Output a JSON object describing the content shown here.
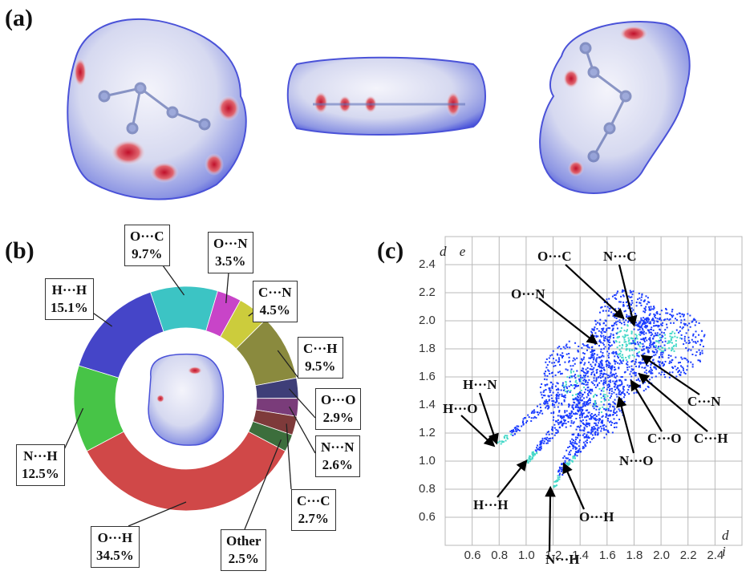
{
  "labels": {
    "a": "(a)",
    "b": "(b)",
    "c": "(c)"
  },
  "colors": {
    "surface_base": "#dfe3f5",
    "surface_blue": "#3b45d8",
    "contact_red": "#c0102a",
    "fingerprint_blue": "#1a3cff",
    "fingerprint_cyan": "#44d8c8"
  },
  "chart_data": [
    {
      "type": "pie",
      "variant": "donut",
      "slices": [
        {
          "label": "O···H",
          "value": 34.5,
          "color": "#d04848",
          "callout": [
            "O···H",
            "34.5%"
          ]
        },
        {
          "label": "N···H",
          "value": 12.5,
          "color": "#47c447",
          "callout": [
            "N···H",
            "12.5%"
          ]
        },
        {
          "label": "H···H",
          "value": 15.1,
          "color": "#4545c8",
          "callout": [
            "H···H",
            "15.1%"
          ]
        },
        {
          "label": "O···C",
          "value": 9.7,
          "color": "#3cc4c4",
          "callout": [
            "O···C",
            "9.7%"
          ]
        },
        {
          "label": "O···N",
          "value": 3.5,
          "color": "#c844c8",
          "callout": [
            "O···N",
            "3.5%"
          ]
        },
        {
          "label": "C···N",
          "value": 4.5,
          "color": "#cccc3c",
          "callout": [
            "C···N",
            "4.5%"
          ]
        },
        {
          "label": "C···H",
          "value": 9.5,
          "color": "#8a8a3e",
          "callout": [
            "C···H",
            "9.5%"
          ]
        },
        {
          "label": "O···O",
          "value": 2.9,
          "color": "#3e3e78",
          "callout": [
            "O···O",
            "2.9%"
          ]
        },
        {
          "label": "N···N",
          "value": 2.6,
          "color": "#7a3c7a",
          "callout": [
            "N···N",
            "2.6%"
          ]
        },
        {
          "label": "C···C",
          "value": 2.7,
          "color": "#7e3a3a",
          "callout": [
            "C···C",
            "2.7%"
          ]
        },
        {
          "label": "Other",
          "value": 2.5,
          "color": "#3c6e3c",
          "callout": [
            "Other",
            "2.5%"
          ]
        }
      ]
    },
    {
      "type": "scatter",
      "variant": "2D fingerprint plot",
      "xlabel": "d i",
      "ylabel": "d e",
      "xlim": [
        0.4,
        2.6
      ],
      "ylim": [
        0.4,
        2.6
      ],
      "xticks": [
        "0.6",
        "0.8",
        "1.0",
        "1.2",
        "1.4",
        "1.6",
        "1.8",
        "2.0",
        "2.2",
        "2.4"
      ],
      "yticks": [
        "2.4",
        "2.2",
        "2.0",
        "1.8",
        "1.6",
        "1.4",
        "1.2",
        "1.0",
        "0.8",
        "0.6"
      ],
      "grid": true,
      "annotations": [
        {
          "text": "O···C",
          "target": [
            1.72,
            2.02
          ]
        },
        {
          "text": "N···C",
          "target": [
            1.8,
            1.97
          ]
        },
        {
          "text": "O···N",
          "target": [
            1.52,
            1.84
          ]
        },
        {
          "text": "H···N",
          "target": [
            0.78,
            1.13
          ]
        },
        {
          "text": "H···O",
          "target": [
            0.76,
            1.11
          ]
        },
        {
          "text": "H···H",
          "target": [
            1.0,
            1.0
          ]
        },
        {
          "text": "N···H",
          "target": [
            1.18,
            0.81
          ]
        },
        {
          "text": "O···H",
          "target": [
            1.28,
            0.98
          ]
        },
        {
          "text": "C···O",
          "target": [
            1.78,
            1.57
          ]
        },
        {
          "text": "C···H",
          "target": [
            1.84,
            1.62
          ]
        },
        {
          "text": "C···N",
          "target": [
            1.86,
            1.75
          ]
        },
        {
          "text": "N···O",
          "target": [
            1.69,
            1.45
          ]
        }
      ]
    }
  ]
}
